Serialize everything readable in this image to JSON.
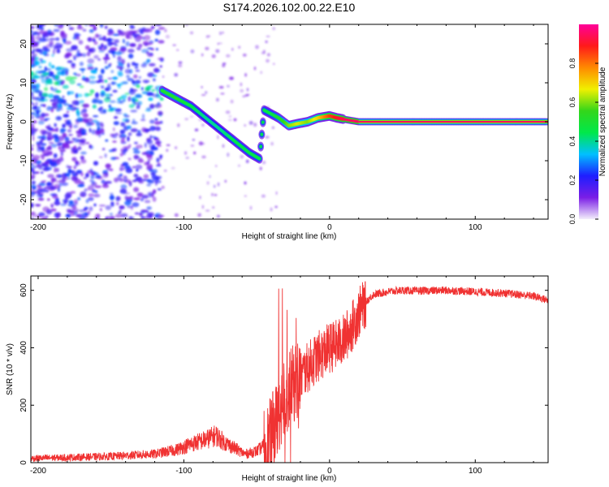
{
  "figure": {
    "title": "S174.2026.102.00.22.E10"
  },
  "chart_data": [
    {
      "type": "heatmap",
      "title": "S174.2026.102.00.22.E10",
      "xlabel": "Height of straight line (km)",
      "ylabel": "Frequency (Hz)",
      "xlim": [
        -205,
        150
      ],
      "ylim": [
        -25,
        25
      ],
      "xticks": [
        -200,
        -100,
        0,
        100
      ],
      "yticks": [
        20,
        10,
        0,
        -10,
        -20
      ],
      "colorbar": {
        "label": "Normalized spectral amplitude",
        "range": [
          0,
          1
        ],
        "ticks": [
          0.0,
          0.2,
          0.4,
          0.6,
          0.8
        ],
        "colormap": [
          "#f3eefb",
          "#7a1ee6",
          "#1e1eff",
          "#00c0ff",
          "#00e84a",
          "#33d61a",
          "#f0f000",
          "#ff8a00",
          "#ff1a1a",
          "#ff0099"
        ]
      },
      "main_trace": {
        "x": [
          -115,
          -105,
          -95,
          -85,
          -75,
          -65,
          -55,
          -48,
          -45,
          -40,
          -35,
          -28,
          -22,
          -15,
          -8,
          0,
          5,
          12,
          20,
          40,
          80,
          120,
          150
        ],
        "y": [
          8,
          6,
          4,
          1,
          -2,
          -5,
          -8,
          -9.5,
          3,
          2,
          1,
          -1,
          -0.5,
          0,
          1,
          1.5,
          1,
          0.5,
          0,
          0,
          0,
          0,
          0
        ],
        "amplitude": [
          0.5,
          0.5,
          0.45,
          0.4,
          0.4,
          0.45,
          0.45,
          0.45,
          0.45,
          0.45,
          0.5,
          0.6,
          0.65,
          0.6,
          0.7,
          0.85,
          0.9,
          0.95,
          0.95,
          0.95,
          0.95,
          0.95,
          0.95
        ]
      }
    },
    {
      "type": "line",
      "xlabel": "Height of straight line (km)",
      "ylabel": "SNR (10 * v/v)",
      "xlim": [
        -205,
        150
      ],
      "ylim": [
        0,
        650
      ],
      "xticks": [
        -200,
        -100,
        0,
        100
      ],
      "yticks": [
        0,
        200,
        400,
        600
      ],
      "color": "#f03232",
      "series": [
        {
          "name": "SNR",
          "x": [
            -205,
            -180,
            -150,
            -120,
            -105,
            -95,
            -85,
            -78,
            -72,
            -65,
            -58,
            -50,
            -42,
            -36,
            -32,
            -28,
            -24,
            -20,
            -15,
            -10,
            -5,
            0,
            5,
            10,
            15,
            20,
            25,
            30,
            40,
            50,
            60,
            80,
            100,
            120,
            140,
            150
          ],
          "y": [
            15,
            18,
            22,
            30,
            45,
            65,
            80,
            95,
            70,
            50,
            30,
            40,
            70,
            150,
            220,
            250,
            280,
            300,
            330,
            360,
            380,
            400,
            410,
            430,
            470,
            520,
            560,
            585,
            595,
            600,
            598,
            600,
            595,
            590,
            580,
            565
          ]
        }
      ]
    }
  ]
}
